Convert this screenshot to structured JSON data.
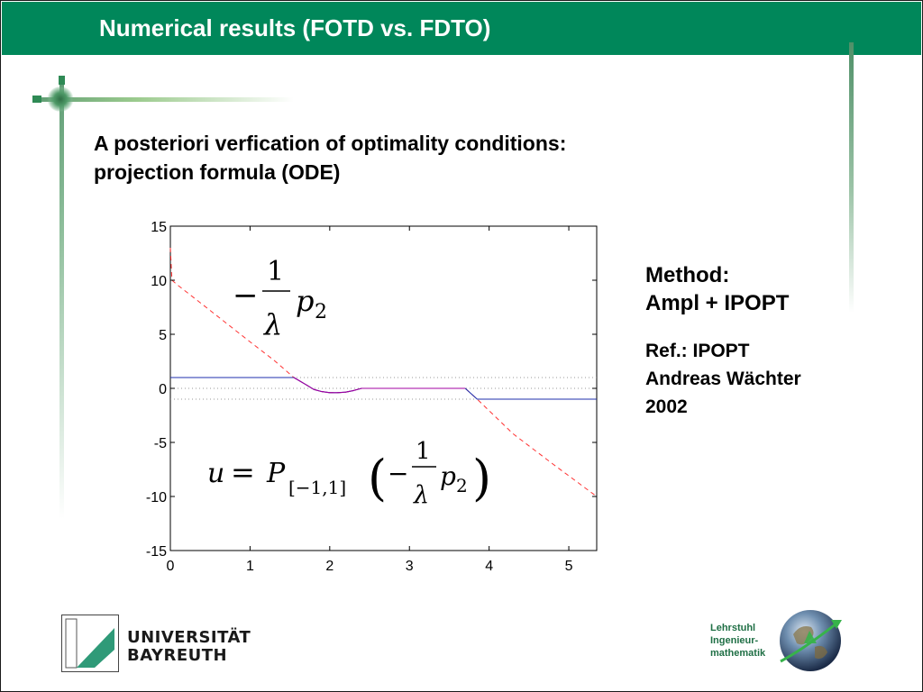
{
  "slide": {
    "title": "Numerical results (FOTD vs. FDTO)",
    "heading_line1": "A posteriori verfication of optimality conditions:",
    "heading_line2": "projection formula (ODE)"
  },
  "side_text": {
    "method_label": "Method:",
    "method_value": "Ampl + IPOPT",
    "ref_line1": "Ref.:  IPOPT",
    "ref_line2": "Andreas Wächter",
    "ref_line3": "2002"
  },
  "footer": {
    "university_line1": "UNIVERSITÄT",
    "university_line2": "BAYREUTH",
    "chair_line1": "Lehrstuhl",
    "chair_line2": "Ingenieur-",
    "chair_line3": "mathematik"
  },
  "colors": {
    "brand_green": "#00875a",
    "control_line": "#1f2fae",
    "control_highlight": "#a000a0",
    "adjoint_dashed": "#ff3333",
    "bound_dotted": "#999999"
  },
  "chart_data": {
    "type": "line",
    "xlim": [
      0,
      5.35
    ],
    "ylim": [
      -15,
      15
    ],
    "x_ticks": [
      "0",
      "1",
      "2",
      "3",
      "4",
      "5"
    ],
    "y_ticks": [
      "15",
      "10",
      "5",
      "0",
      "-5",
      "-10",
      "-15"
    ],
    "grid": false,
    "annotations": {
      "upper_formula": "−(1/λ) p₂",
      "lower_formula": "u = P[−1,1] (−(1/λ) p₂)"
    },
    "series": [
      {
        "style": "dashed",
        "color": "#ff3333",
        "x": [
          0,
          0.02,
          0.1,
          0.5,
          1.0,
          1.3,
          1.55,
          1.7,
          1.8,
          1.9,
          2.0,
          2.1,
          2.2,
          2.3,
          2.4,
          2.5,
          3.0,
          3.5,
          3.7,
          3.85,
          4.3,
          4.8,
          5.35
        ],
        "y": [
          13,
          10.0,
          9.5,
          7.2,
          4.3,
          2.6,
          1.0,
          0.35,
          -0.1,
          -0.3,
          -0.4,
          -0.4,
          -0.35,
          -0.2,
          0.0,
          0.0,
          0.0,
          0.0,
          0.0,
          -1.0,
          -4.2,
          -7.0,
          -10.0
        ]
      },
      {
        "style": "solid",
        "color": "#1f2fae",
        "x": [
          0,
          1.55,
          1.7,
          1.8,
          1.9,
          2.0,
          2.1,
          2.2,
          2.3,
          2.4,
          2.5,
          3.0,
          3.5,
          3.7,
          3.85,
          4.3,
          5.35
        ],
        "y": [
          1,
          1,
          0.35,
          -0.1,
          -0.3,
          -0.4,
          -0.4,
          -0.35,
          -0.2,
          0.0,
          0.0,
          0.0,
          0.0,
          0.0,
          -1.0,
          -1.0,
          -1.0
        ]
      },
      {
        "style": "solid",
        "color": "#a000a0",
        "x": [
          1.55,
          1.7,
          1.8,
          1.9,
          2.0,
          2.1,
          2.2,
          2.3,
          2.4,
          2.5,
          3.0,
          3.5,
          3.7
        ],
        "y": [
          1.0,
          0.35,
          -0.1,
          -0.3,
          -0.4,
          -0.4,
          -0.35,
          -0.2,
          0.0,
          0.0,
          0.0,
          0.0,
          0.0
        ]
      },
      {
        "style": "dotted",
        "color": "#999999",
        "x": [
          0,
          5.35
        ],
        "y": [
          1,
          1
        ]
      },
      {
        "style": "dotted",
        "color": "#999999",
        "x": [
          0,
          5.35
        ],
        "y": [
          0,
          0
        ]
      },
      {
        "style": "dotted",
        "color": "#999999",
        "x": [
          0,
          5.35
        ],
        "y": [
          -1,
          -1
        ]
      }
    ]
  }
}
